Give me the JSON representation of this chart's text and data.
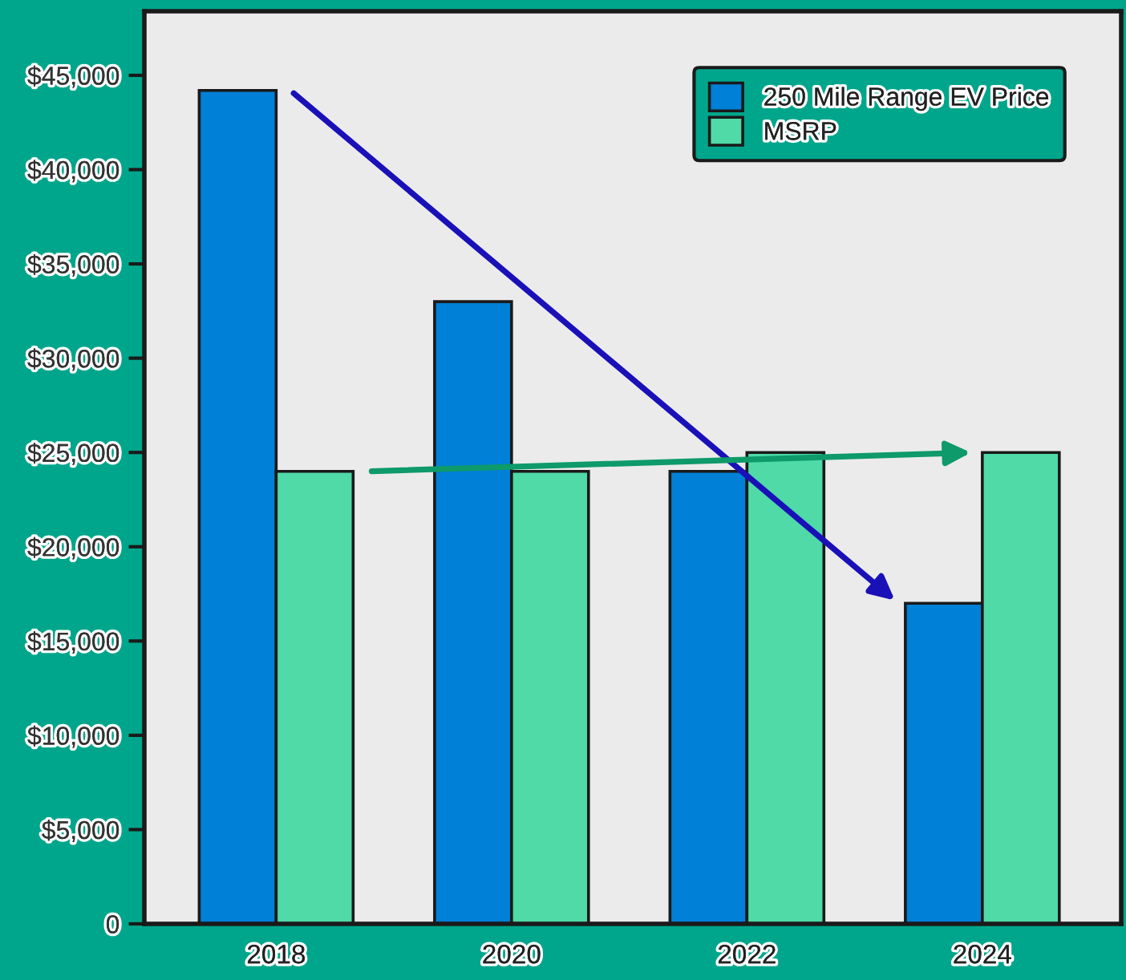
{
  "chart_data": {
    "type": "bar",
    "categories": [
      "2018",
      "2020",
      "2022",
      "2024"
    ],
    "series": [
      {
        "name": "250 Mile Range EV Price",
        "color": "#0080d6",
        "values": [
          44200,
          33000,
          24000,
          17000
        ]
      },
      {
        "name": "MSRP",
        "color": "#4fdaa8",
        "values": [
          24000,
          24000,
          25000,
          25000
        ]
      }
    ],
    "ylim": [
      0,
      48400
    ],
    "yticks": [
      0,
      {
        "value": 5000,
        "label": "$5,000"
      },
      {
        "value": 10000,
        "label": "$10,000"
      },
      {
        "value": 15000,
        "label": "$15,000"
      },
      {
        "value": 20000,
        "label": "$20,000"
      },
      {
        "value": 25000,
        "label": "$25,000"
      },
      {
        "value": 30000,
        "label": "$30,000"
      },
      {
        "value": 35000,
        "label": "$35,000"
      },
      {
        "value": 40000,
        "label": "$40,000"
      },
      {
        "value": 45000,
        "label": "$45,000"
      }
    ],
    "legend": "top right"
  }
}
